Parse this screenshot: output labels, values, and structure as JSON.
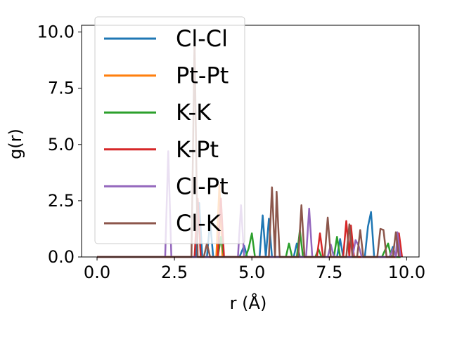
{
  "chart_data": {
    "type": "line",
    "title": "",
    "xlabel": "r (Å)",
    "ylabel": "g(r)",
    "xlim": [
      -0.5,
      10.4
    ],
    "ylim": [
      0,
      10.3
    ],
    "xticks": [
      "0.0",
      "2.5",
      "5.0",
      "7.5",
      "10.0"
    ],
    "xtick_values": [
      0,
      2.5,
      5,
      7.5,
      10
    ],
    "yticks": [
      "0.0",
      "2.5",
      "5.0",
      "7.5",
      "10.0"
    ],
    "ytick_values": [
      0,
      2.5,
      5,
      7.5,
      10
    ],
    "grid": false,
    "legend_position": "top-left",
    "series": [
      {
        "name": "Cl-Cl",
        "color": "#1f77b4",
        "points": [
          [
            0,
            0
          ],
          [
            3.2,
            0
          ],
          [
            3.3,
            2.4
          ],
          [
            3.4,
            0
          ],
          [
            3.55,
            0
          ],
          [
            3.65,
            1.6
          ],
          [
            3.75,
            0
          ],
          [
            4.6,
            0
          ],
          [
            4.75,
            0.5
          ],
          [
            4.85,
            0
          ],
          [
            5.25,
            0
          ],
          [
            5.35,
            1.85
          ],
          [
            5.45,
            0
          ],
          [
            5.55,
            1.7
          ],
          [
            5.65,
            0
          ],
          [
            6.35,
            0
          ],
          [
            6.45,
            0.6
          ],
          [
            6.55,
            0
          ],
          [
            7.75,
            0
          ],
          [
            7.85,
            0.8
          ],
          [
            7.95,
            0
          ],
          [
            8.65,
            0
          ],
          [
            8.75,
            1.35
          ],
          [
            8.85,
            2.0
          ],
          [
            8.95,
            0
          ],
          [
            9.45,
            0
          ],
          [
            9.55,
            0.45
          ],
          [
            9.65,
            0
          ],
          [
            9.8,
            0
          ]
        ]
      },
      {
        "name": "Pt-Pt",
        "color": "#ff7f0e",
        "points": [
          [
            0,
            0
          ],
          [
            3.85,
            0
          ],
          [
            3.95,
            3.2
          ],
          [
            4.05,
            0
          ],
          [
            9.8,
            0
          ]
        ]
      },
      {
        "name": "K-K",
        "color": "#2ca02c",
        "points": [
          [
            0,
            0
          ],
          [
            3.9,
            0
          ],
          [
            4.0,
            0.9
          ],
          [
            4.1,
            0
          ],
          [
            4.8,
            0
          ],
          [
            4.9,
            0.4
          ],
          [
            5.0,
            1.05
          ],
          [
            5.1,
            0
          ],
          [
            6.1,
            0
          ],
          [
            6.2,
            0.6
          ],
          [
            6.3,
            0
          ],
          [
            6.45,
            0
          ],
          [
            6.55,
            1.2
          ],
          [
            6.65,
            0
          ],
          [
            7.05,
            0
          ],
          [
            7.15,
            0.35
          ],
          [
            7.25,
            0
          ],
          [
            7.65,
            0
          ],
          [
            7.75,
            0.9
          ],
          [
            7.85,
            0
          ],
          [
            9.2,
            0
          ],
          [
            9.3,
            0.3
          ],
          [
            9.4,
            0.6
          ],
          [
            9.5,
            0
          ],
          [
            9.8,
            0
          ]
        ]
      },
      {
        "name": "K-Pt",
        "color": "#d62728",
        "points": [
          [
            0,
            0
          ],
          [
            3.15,
            0
          ],
          [
            3.25,
            2.6
          ],
          [
            3.35,
            0
          ],
          [
            3.9,
            0
          ],
          [
            4.0,
            2.6
          ],
          [
            4.1,
            0
          ],
          [
            7.1,
            0
          ],
          [
            7.2,
            1.05
          ],
          [
            7.3,
            0
          ],
          [
            7.95,
            0
          ],
          [
            8.05,
            1.6
          ],
          [
            8.15,
            0
          ],
          [
            8.2,
            1.4
          ],
          [
            8.3,
            0
          ],
          [
            9.65,
            0
          ],
          [
            9.75,
            1.05
          ],
          [
            9.85,
            0
          ]
        ]
      },
      {
        "name": "Cl-Pt",
        "color": "#9467bd",
        "points": [
          [
            0,
            0
          ],
          [
            2.2,
            0
          ],
          [
            2.3,
            4.7
          ],
          [
            2.4,
            0
          ],
          [
            4.55,
            0
          ],
          [
            4.65,
            2.3
          ],
          [
            4.75,
            0
          ],
          [
            6.75,
            0
          ],
          [
            6.85,
            2.15
          ],
          [
            6.95,
            0
          ],
          [
            7.45,
            0
          ],
          [
            7.55,
            0.55
          ],
          [
            7.65,
            0
          ],
          [
            8.25,
            0
          ],
          [
            8.35,
            0.75
          ],
          [
            8.45,
            0.5
          ],
          [
            8.55,
            0
          ],
          [
            9.45,
            0
          ],
          [
            9.55,
            0.35
          ],
          [
            9.65,
            0
          ],
          [
            9.7,
            1.1
          ],
          [
            9.8,
            0
          ]
        ]
      },
      {
        "name": "Cl-K",
        "color": "#8c564b",
        "points": [
          [
            0,
            0
          ],
          [
            3.05,
            0
          ],
          [
            3.15,
            9.7
          ],
          [
            3.25,
            0
          ],
          [
            3.45,
            0
          ],
          [
            3.55,
            0.6
          ],
          [
            3.65,
            0
          ],
          [
            5.55,
            0
          ],
          [
            5.65,
            3.1
          ],
          [
            5.75,
            0
          ],
          [
            5.8,
            2.9
          ],
          [
            5.9,
            0
          ],
          [
            6.5,
            0
          ],
          [
            6.6,
            2.3
          ],
          [
            6.7,
            0
          ],
          [
            7.35,
            0
          ],
          [
            7.45,
            1.75
          ],
          [
            7.55,
            0
          ],
          [
            8.05,
            0
          ],
          [
            8.15,
            1.45
          ],
          [
            8.25,
            0
          ],
          [
            8.4,
            0
          ],
          [
            8.5,
            1.2
          ],
          [
            8.6,
            0
          ],
          [
            9.05,
            0
          ],
          [
            9.15,
            1.25
          ],
          [
            9.25,
            1.2
          ],
          [
            9.35,
            0
          ],
          [
            9.55,
            0
          ],
          [
            9.65,
            1.1
          ],
          [
            9.75,
            0
          ]
        ]
      }
    ]
  }
}
